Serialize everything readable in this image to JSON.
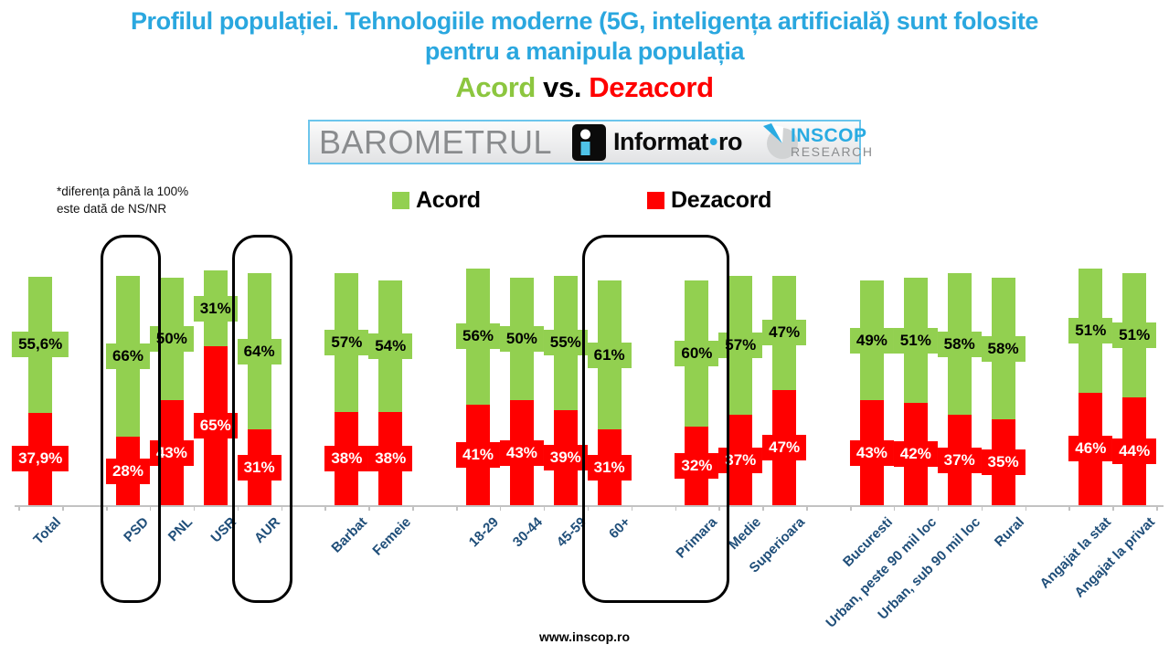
{
  "title": {
    "line1": "Profilul populației. Tehnologiile moderne (5G, inteligența artificială) sunt folosite",
    "line2": "pentru a manipula populația",
    "acord": "Acord",
    "vs": "vs.",
    "dezacord": "Dezacord"
  },
  "logos": {
    "barometrul": "BAROMETRUL",
    "informat": "Informat",
    "informat_suffix": "ro",
    "inscop": "INSCOP",
    "research": "RESEARCH"
  },
  "footnote": {
    "line1": "*diferența până la 100%",
    "line2": "este dată de NS/NR"
  },
  "legend": [
    {
      "label": "Acord",
      "color": "#92D050"
    },
    {
      "label": "Dezacord",
      "color": "#FF0000"
    }
  ],
  "footer": "www.inscop.ro",
  "colors": {
    "title_blue": "#2AA7DF",
    "subtitle_green": "#8CC63F",
    "subtitle_red": "#FF0000",
    "bar_green": "#92D050",
    "bar_red": "#FF0000",
    "axis_navy": "#1F4E79",
    "axis_gray": "#C2C2C2",
    "border_blue": "#6CC5EC",
    "barometrul_gray": "#8A8C8E",
    "inscop_blue": "#29ABE2",
    "research_gray": "#8A8C8E"
  },
  "chart_data": {
    "type": "bar",
    "stacked": true,
    "title": "Profilul populației. Tehnologiile moderne (5G, inteligența artificială) sunt folosite pentru a manipula populația — Acord vs. Dezacord",
    "xlabel": "",
    "ylabel": "",
    "ylim": [
      0,
      100
    ],
    "legend_position": "top",
    "legend_entries": [
      "Acord",
      "Dezacord"
    ],
    "annotation": "*diferența până la 100% este dată de NS/NR",
    "categories": [
      "Total",
      "PSD",
      "PNL",
      "USR",
      "AUR",
      "Barbat",
      "Femeie",
      "18-29",
      "30-44",
      "45-59",
      "60+",
      "Primara",
      "Medie",
      "Superioara",
      "Bucuresti",
      "Urban, peste 90 mil loc",
      "Urban, sub 90 mil loc",
      "Rural",
      "Angajat la stat",
      "Angajat la privat"
    ],
    "slots": [
      0,
      2,
      3,
      4,
      5,
      7,
      8,
      10,
      11,
      12,
      13,
      15,
      16,
      17,
      19,
      20,
      21,
      22,
      24,
      25
    ],
    "series": [
      {
        "name": "Acord",
        "color": "#92D050",
        "values": [
          55.6,
          66,
          50,
          31,
          64,
          57,
          54,
          56,
          50,
          55,
          61,
          60,
          57,
          47,
          49,
          51,
          58,
          58,
          51,
          51
        ],
        "display_labels": [
          "55,6%",
          "66%",
          "50%",
          "31%",
          "64%",
          "57%",
          "54%",
          "56%",
          "50%",
          "55%",
          "61%",
          "60%",
          "57%",
          "47%",
          "49%",
          "51%",
          "58%",
          "58%",
          "51%",
          "51%"
        ]
      },
      {
        "name": "Dezacord",
        "color": "#FF0000",
        "values": [
          37.9,
          28,
          43,
          65,
          31,
          38,
          38,
          41,
          43,
          39,
          31,
          32,
          37,
          47,
          43,
          42,
          37,
          35,
          46,
          44
        ],
        "display_labels": [
          "37,9%",
          "28%",
          "43%",
          "65%",
          "31%",
          "38%",
          "38%",
          "41%",
          "43%",
          "39%",
          "31%",
          "32%",
          "37%",
          "47%",
          "43%",
          "42%",
          "37%",
          "35%",
          "46%",
          "44%"
        ]
      }
    ],
    "highlights": [
      {
        "from_slot": 2,
        "to_slot": 2,
        "categories": [
          "PSD"
        ]
      },
      {
        "from_slot": 5,
        "to_slot": 5,
        "categories": [
          "AUR"
        ]
      },
      {
        "from_slot": 13,
        "to_slot": 15,
        "categories": [
          "60+",
          "Primara"
        ]
      }
    ]
  }
}
